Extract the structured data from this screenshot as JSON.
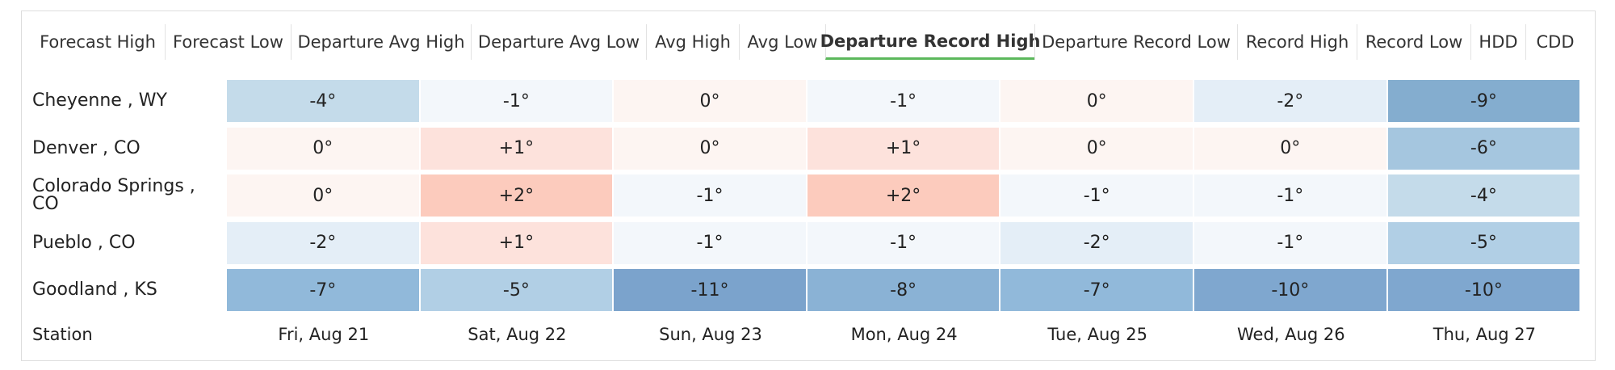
{
  "tabs": [
    "Forecast High",
    "Forecast Low",
    "Departure Avg High",
    "Departure Avg Low",
    "Avg High",
    "Avg Low",
    "Departure Record High",
    "Departure Record Low",
    "Record High",
    "Record Low",
    "HDD",
    "CDD"
  ],
  "active_tab": 6,
  "table": {
    "rows": [
      {
        "station": "Cheyenne , WY",
        "cells": [
          "-4°",
          "-1°",
          "0°",
          "-1°",
          "0°",
          "-2°",
          "-9°"
        ],
        "colors": [
          "#c4dbea",
          "#f3f7fb",
          "#fdf5f2",
          "#f3f7fb",
          "#fdf5f2",
          "#e4eef7",
          "#84adcf"
        ]
      },
      {
        "station": "Denver , CO",
        "cells": [
          "0°",
          "+1°",
          "0°",
          "+1°",
          "0°",
          "0°",
          "-6°"
        ],
        "colors": [
          "#fdf5f2",
          "#fde2dc",
          "#fdf5f2",
          "#fde2dc",
          "#fdf5f2",
          "#fdf5f2",
          "#a5c6df"
        ]
      },
      {
        "station": "Colorado Springs , CO",
        "cells": [
          "0°",
          "+2°",
          "-1°",
          "+2°",
          "-1°",
          "-1°",
          "-4°"
        ],
        "colors": [
          "#fdf5f2",
          "#fccbbd",
          "#f3f7fb",
          "#fccbbd",
          "#f3f7fb",
          "#f3f7fb",
          "#c4dbea"
        ]
      },
      {
        "station": "Pueblo , CO",
        "cells": [
          "-2°",
          "+1°",
          "-1°",
          "-1°",
          "-2°",
          "-1°",
          "-5°"
        ],
        "colors": [
          "#e4eef7",
          "#fde2dc",
          "#f3f7fb",
          "#f3f7fb",
          "#e4eef7",
          "#f3f7fb",
          "#b1cfe5"
        ]
      },
      {
        "station": "Goodland , KS",
        "cells": [
          "-7°",
          "-5°",
          "-11°",
          "-8°",
          "-7°",
          "-10°",
          "-10°"
        ],
        "colors": [
          "#91b9da",
          "#b1cfe5",
          "#7ba3cc",
          "#8ab2d5",
          "#91b9da",
          "#7fa7cf",
          "#7fa7cf"
        ]
      }
    ],
    "footer": {
      "label": "Station",
      "dates": [
        "Fri, Aug 21",
        "Sat, Aug 22",
        "Sun, Aug 23",
        "Mon, Aug 24",
        "Tue, Aug 25",
        "Wed, Aug 26",
        "Thu, Aug 27"
      ]
    }
  }
}
